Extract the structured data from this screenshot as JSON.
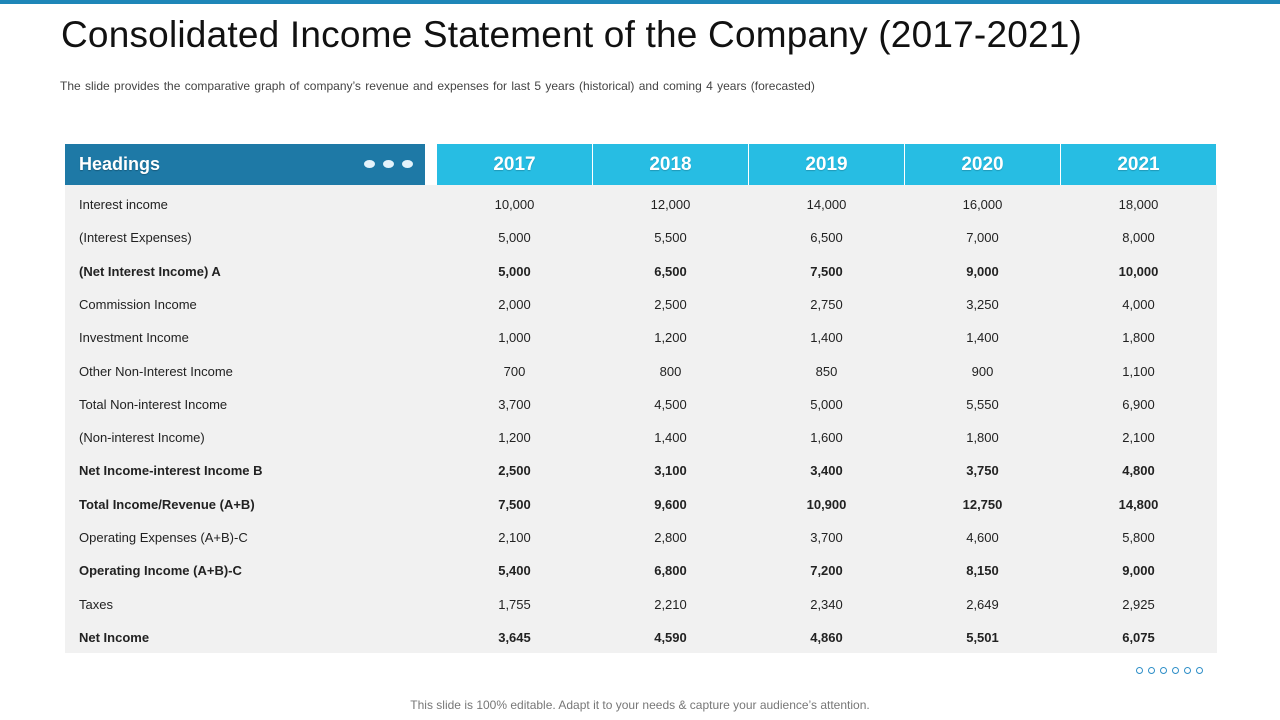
{
  "title": "Consolidated Income Statement of the Company (2017-2021)",
  "subtitle": "The slide provides  the comparative  graph  of company’s revenue  and expenses for last 5 years (historical) and coming 4 years (forecasted)",
  "table": {
    "headings_label": "Headings",
    "years": [
      "2017",
      "2018",
      "2019",
      "2020",
      "2021"
    ],
    "rows": [
      {
        "label": "Interest income",
        "bold": false,
        "values": [
          "10,000",
          "12,000",
          "14,000",
          "16,000",
          "18,000"
        ]
      },
      {
        "label": "(Interest Expenses)",
        "bold": false,
        "values": [
          "5,000",
          "5,500",
          "6,500",
          "7,000",
          "8,000"
        ]
      },
      {
        "label": "(Net Interest Income) A",
        "bold": true,
        "values": [
          "5,000",
          "6,500",
          "7,500",
          "9,000",
          "10,000"
        ]
      },
      {
        "label": "Commission Income",
        "bold": false,
        "values": [
          "2,000",
          "2,500",
          "2,750",
          "3,250",
          "4,000"
        ]
      },
      {
        "label": "Investment  Income",
        "bold": false,
        "values": [
          "1,000",
          "1,200",
          "1,400",
          "1,400",
          "1,800"
        ]
      },
      {
        "label": "Other Non-Interest Income",
        "bold": false,
        "values": [
          "700",
          "800",
          "850",
          "900",
          "1,100"
        ]
      },
      {
        "label": "Total Non-interest Income",
        "bold": false,
        "values": [
          "3,700",
          "4,500",
          "5,000",
          "5,550",
          "6,900"
        ]
      },
      {
        "label": "(Non-interest Income)",
        "bold": false,
        "values": [
          "1,200",
          "1,400",
          "1,600",
          "1,800",
          "2,100"
        ]
      },
      {
        "label": "Net Income-interest Income B",
        "bold": true,
        "values": [
          "2,500",
          "3,100",
          "3,400",
          "3,750",
          "4,800"
        ]
      },
      {
        "label": "Total Income/Revenue (A+B)",
        "bold": true,
        "values": [
          "7,500",
          "9,600",
          "10,900",
          "12,750",
          "14,800"
        ]
      },
      {
        "label": "Operating Expenses (A+B)-C",
        "bold": false,
        "values": [
          "2,100",
          "2,800",
          "3,700",
          "4,600",
          "5,800"
        ]
      },
      {
        "label": "Operating Income (A+B)-C",
        "bold": true,
        "values": [
          "5,400",
          "6,800",
          "7,200",
          "8,150",
          "9,000"
        ]
      },
      {
        "label": "Taxes",
        "bold": false,
        "values": [
          "1,755",
          "2,210",
          "2,340",
          "2,649",
          "2,925"
        ]
      },
      {
        "label": "Net Income",
        "bold": true,
        "values": [
          "3,645",
          "4,590",
          "4,860",
          "5,501",
          "6,075"
        ]
      }
    ]
  },
  "footer": "This slide is 100% editable. Adapt it to your needs & capture your audience’s attention.",
  "colors": {
    "accent_dark": "#1e79a6",
    "accent_light": "#27bde3",
    "table_body": "#f1f1f1"
  }
}
